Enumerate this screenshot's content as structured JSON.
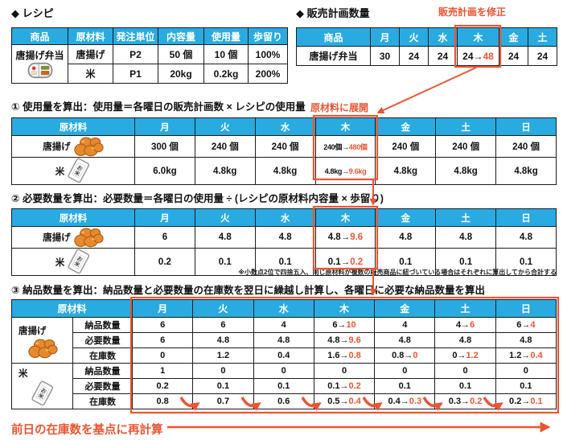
{
  "colors": {
    "header_blue": "#29ABE2",
    "accent": "#EA5532"
  },
  "recipe": {
    "title": "◆ レシピ",
    "headers": [
      "商品",
      "原材料",
      "発注単位",
      "内容量",
      "使用量",
      "歩留り"
    ],
    "product": "唐揚げ弁当",
    "product_icon": "bento-icon",
    "rows": [
      {
        "material": "唐揚げ",
        "order_unit": "P2",
        "content": "50 個",
        "usage": "10 個",
        "yield": "100%"
      },
      {
        "material": "米",
        "order_unit": "P1",
        "content": "20kg",
        "usage": "0.2kg",
        "yield": "200%"
      }
    ]
  },
  "sales_plan": {
    "title": "◆ 販売計画数量",
    "annotation": "販売計画を修正",
    "headers": [
      "商品",
      "月",
      "火",
      "水",
      "木",
      "金",
      "土"
    ],
    "rows": [
      {
        "label": "唐揚げ弁当",
        "values": [
          "30",
          "24",
          "24",
          "24→48",
          "24",
          "24"
        ]
      }
    ]
  },
  "usage": {
    "title": "① 使用量を算出：使用量＝各曜日の販売計画数 × レシピの使用量",
    "annotation": "原材料に展開",
    "headers": [
      "原材料",
      "月",
      "火",
      "水",
      "木",
      "金",
      "土",
      "日"
    ],
    "rows": [
      {
        "label": "唐揚げ",
        "icon": "karaage-icon",
        "values": [
          "300 個",
          "240 個",
          "240 個",
          "240個→480個",
          "240 個",
          "240 個",
          "240 個"
        ]
      },
      {
        "label": "米",
        "icon": "rice-bag-icon",
        "values": [
          "6.0kg",
          "4.8kg",
          "4.8kg",
          "4.8kg→9.6kg",
          "4.8kg",
          "4.8kg",
          "4.8kg"
        ]
      }
    ]
  },
  "required": {
    "title": "② 必要数量を算出：必要数量＝各曜日の使用量 ÷ (レシピの原材料内容量 × 歩留り)",
    "headers": [
      "原材料",
      "月",
      "火",
      "水",
      "木",
      "金",
      "土",
      "日"
    ],
    "rows": [
      {
        "label": "唐揚げ",
        "icon": "karaage-icon",
        "values": [
          "6",
          "4.8",
          "4.8",
          "4.8→9.6",
          "4.8",
          "4.8",
          "4.8"
        ]
      },
      {
        "label": "米",
        "icon": "rice-bag-icon",
        "values": [
          "0.2",
          "0.1",
          "0.1",
          "0.1→0.2",
          "0.1",
          "0.1",
          "0.1"
        ]
      }
    ],
    "footnote": "※小数点2位で四捨五入、同じ原材料が複数の販売商品に紐づいている場合はそれぞれに算出してから合計する"
  },
  "delivery": {
    "title": "③ 納品数量を算出：納品数量と必要数量の在庫数を翌日に繰越し計算し、各曜日に必要な納品数量を算出",
    "headers": [
      "原材料",
      "月",
      "火",
      "水",
      "木",
      "金",
      "土",
      "日"
    ],
    "groups": [
      {
        "material": "唐揚げ",
        "icon": "karaage-icon",
        "rows": [
          {
            "label": "納品数量",
            "values": [
              "6",
              "6",
              "4",
              "6→10",
              "4",
              "4→6",
              "6→4"
            ]
          },
          {
            "label": "必要数量",
            "values": [
              "6",
              "4.8",
              "4.8",
              "4.8→9.6",
              "4.8",
              "4.8",
              "4.8"
            ]
          },
          {
            "label": "在庫数",
            "values": [
              "0",
              "1.2",
              "0.4",
              "1.6→0.8",
              "0.8→0",
              "0→1.2",
              "1.2→0.4"
            ]
          }
        ]
      },
      {
        "material": "米",
        "icon": "rice-bag-icon",
        "rows": [
          {
            "label": "納品数量",
            "values": [
              "1",
              "0",
              "0",
              "0",
              "0",
              "0",
              "0"
            ]
          },
          {
            "label": "必要数量",
            "values": [
              "0.2",
              "0.1",
              "0.1",
              "0.1→0.2",
              "0.1",
              "0.1",
              "0.1"
            ]
          },
          {
            "label": "在庫数",
            "values": [
              "0.8",
              "0.7",
              "0.6",
              "0.5→0.4",
              "0.4→0.3",
              "0.3→0.2",
              "0.2→0.1"
            ]
          }
        ]
      }
    ]
  },
  "footer": {
    "annotation": "前日の在庫数を基点に再計算"
  }
}
